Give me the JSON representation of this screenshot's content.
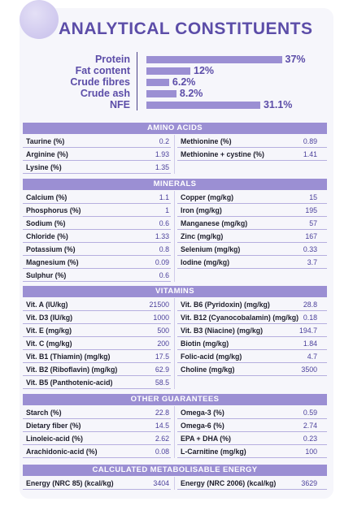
{
  "title": "ANALYTICAL CONSTITUENTS",
  "bars": [
    {
      "label": "Protein",
      "value": "37%",
      "pct": 37
    },
    {
      "label": "Fat content",
      "value": "12%",
      "pct": 12
    },
    {
      "label": "Crude fibres",
      "value": "6.2%",
      "pct": 6.2
    },
    {
      "label": "Crude ash",
      "value": "8.2%",
      "pct": 8.2
    },
    {
      "label": "NFE",
      "value": "31.1%",
      "pct": 31.1
    }
  ],
  "amino_acids": {
    "header": "AMINO ACIDS",
    "left": [
      {
        "label": "Taurine (%)",
        "value": "0.2"
      },
      {
        "label": "Arginine (%)",
        "value": "1.93"
      },
      {
        "label": "Lysine (%)",
        "value": "1.35"
      }
    ],
    "right": [
      {
        "label": "Methionine (%)",
        "value": "0.89"
      },
      {
        "label": "Methionine + cystine (%)",
        "value": "1.41"
      }
    ]
  },
  "minerals": {
    "header": "MINERALS",
    "left": [
      {
        "label": "Calcium (%)",
        "value": "1.1"
      },
      {
        "label": "Phosphorus (%)",
        "value": "1"
      },
      {
        "label": "Sodium (%)",
        "value": "0.6"
      },
      {
        "label": "Chloride (%)",
        "value": "1.33"
      },
      {
        "label": "Potassium (%)",
        "value": "0.8"
      },
      {
        "label": "Magnesium (%)",
        "value": "0.09"
      },
      {
        "label": "Sulphur (%)",
        "value": "0.6"
      }
    ],
    "right": [
      {
        "label": "Copper (mg/kg)",
        "value": "15"
      },
      {
        "label": "Iron (mg/kg)",
        "value": "195"
      },
      {
        "label": "Manganese (mg/kg)",
        "value": "57"
      },
      {
        "label": "Zinc (mg/kg)",
        "value": "167"
      },
      {
        "label": "Selenium (mg/kg)",
        "value": "0.33"
      },
      {
        "label": "Iodine (mg/kg)",
        "value": "3.7"
      }
    ]
  },
  "vitamins": {
    "header": "VITAMINS",
    "left": [
      {
        "label": "Vit. A (IU/kg)",
        "value": "21500"
      },
      {
        "label": "Vit. D3 (IU/kg)",
        "value": "1000"
      },
      {
        "label": "Vit. E (mg/kg)",
        "value": "500"
      },
      {
        "label": "Vit. C (mg/kg)",
        "value": "200"
      },
      {
        "label": "Vit. B1 (Thiamin) (mg/kg)",
        "value": "17.5"
      },
      {
        "label": "Vit. B2 (Riboflavin) (mg/kg)",
        "value": "62.9"
      },
      {
        "label": "Vit. B5 (Panthotenic-acid)",
        "value": "58.5"
      }
    ],
    "right": [
      {
        "label": "Vit. B6 (Pyridoxin) (mg/kg)",
        "value": "28.8"
      },
      {
        "label": "Vit. B12 (Cyanocobalamin) (mg/kg)",
        "value": "0.18"
      },
      {
        "label": "Vit. B3 (Niacine) (mg/kg)",
        "value": "194.7"
      },
      {
        "label": "Biotin (mg/kg)",
        "value": "1.84"
      },
      {
        "label": "Folic-acid (mg/kg)",
        "value": "4.7"
      },
      {
        "label": "Choline (mg/kg)",
        "value": "3500"
      }
    ]
  },
  "other": {
    "header": "OTHER GUARANTEES",
    "left": [
      {
        "label": "Starch (%)",
        "value": "22.8"
      },
      {
        "label": "Dietary fiber (%)",
        "value": "14.5"
      },
      {
        "label": "Linoleic-acid (%)",
        "value": "2.62"
      },
      {
        "label": "Arachidonic-acid (%)",
        "value": "0.08"
      }
    ],
    "right": [
      {
        "label": "Omega-3 (%)",
        "value": "0.59"
      },
      {
        "label": "Omega-6 (%)",
        "value": "2.74"
      },
      {
        "label": "EPA + DHA (%)",
        "value": "0.23"
      },
      {
        "label": "L-Carnitine (mg/kg)",
        "value": "100"
      }
    ]
  },
  "energy": {
    "header": "CALCULATED METABOLISABLE ENERGY",
    "left": [
      {
        "label": "Energy (NRC 85) (kcal/kg)",
        "value": "3404"
      }
    ],
    "right": [
      {
        "label": "Energy (NRC 2006) (kcal/kg)",
        "value": "3629"
      }
    ]
  },
  "colors": {
    "accent": "#5c4da8",
    "bar": "#9b8fd3",
    "header_bg": "#9b8fd3"
  }
}
